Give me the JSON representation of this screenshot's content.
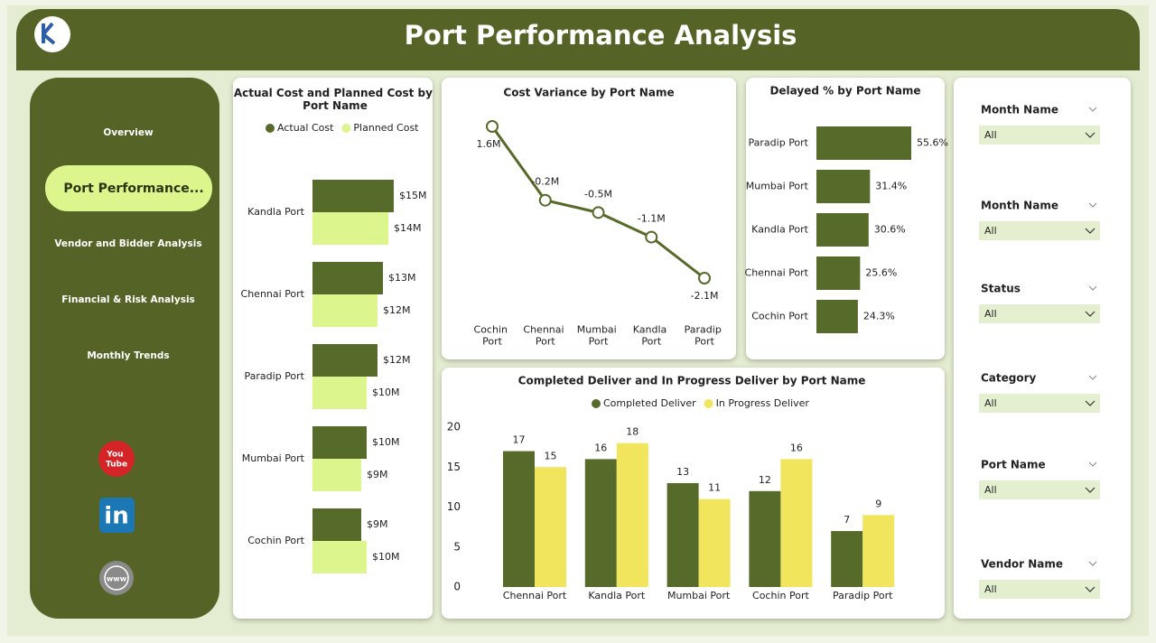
{
  "header": {
    "title": "Port Performance Analysis"
  },
  "nav": {
    "items": [
      "Overview",
      "Port Performance...",
      "Vendor and Bidder Analysis",
      "Financial & Risk Analysis",
      "Monthly Trends"
    ]
  },
  "icons": {
    "youtube": "You Tube",
    "linkedin": "in",
    "website": "www"
  },
  "chart_data": [
    {
      "type": "bar",
      "orientation": "horizontal",
      "title": "Actual Cost and Planned Cost by Port Name",
      "categories": [
        "Kandla Port",
        "Chennai Port",
        "Paradip Port",
        "Mumbai Port",
        "Cochin Port"
      ],
      "series": [
        {
          "name": "Actual Cost",
          "color": "#566a29",
          "values": [
            15,
            13,
            12,
            10,
            9
          ],
          "value_labels": [
            "$15M",
            "$13M",
            "$12M",
            "$10M",
            "$9M"
          ]
        },
        {
          "name": "Planned Cost",
          "color": "#dcf58c",
          "values": [
            14,
            12,
            10,
            9,
            10
          ],
          "value_labels": [
            "$14M",
            "$12M",
            "$10M",
            "$9M",
            "$10M"
          ]
        }
      ],
      "legend": "top"
    },
    {
      "type": "line",
      "title": "Cost Variance by Port Name",
      "categories": [
        "Cochin Port",
        "Chennai Port",
        "Mumbai Port",
        "Kandla Port",
        "Paradip Port"
      ],
      "values": [
        1.6,
        -0.2,
        -0.5,
        -1.1,
        -2.1
      ],
      "value_labels": [
        "1.6M",
        "-0.2M",
        "-0.5M",
        "-1.1M",
        "-2.1M"
      ],
      "color": "#566a29"
    },
    {
      "type": "bar",
      "orientation": "horizontal",
      "title": "Delayed % by Port Name",
      "categories": [
        "Paradip Port",
        "Mumbai Port",
        "Kandla Port",
        "Chennai Port",
        "Cochin Port"
      ],
      "series": [
        {
          "color": "#566a29",
          "values": [
            55.6,
            31.4,
            30.6,
            25.6,
            24.3
          ],
          "value_labels": [
            "55.6%",
            "31.4%",
            "30.6%",
            "25.6%",
            "24.3%"
          ]
        }
      ]
    },
    {
      "type": "bar",
      "orientation": "vertical",
      "title": "Completed Deliver and In Progress Deliver by Port Name",
      "categories": [
        "Chennai Port",
        "Kandla Port",
        "Mumbai Port",
        "Cochin Port",
        "Paradip Port"
      ],
      "series": [
        {
          "name": "Completed Deliver",
          "color": "#566a29",
          "values": [
            17,
            16,
            13,
            12,
            7
          ]
        },
        {
          "name": "In Progress Deliver",
          "color": "#f0e55c",
          "values": [
            15,
            18,
            11,
            16,
            9
          ]
        }
      ],
      "ylim": [
        0,
        20
      ],
      "yticks": [
        0,
        5,
        10,
        15,
        20
      ],
      "grid": false,
      "legend": "top"
    }
  ],
  "filters": [
    {
      "label": "Month Name",
      "value": "All"
    },
    {
      "label": "Month Name",
      "value": "All"
    },
    {
      "label": "Status",
      "value": "All"
    },
    {
      "label": "Category",
      "value": "All"
    },
    {
      "label": "Port Name",
      "value": "All"
    },
    {
      "label": "Vendor Name",
      "value": "All"
    }
  ]
}
